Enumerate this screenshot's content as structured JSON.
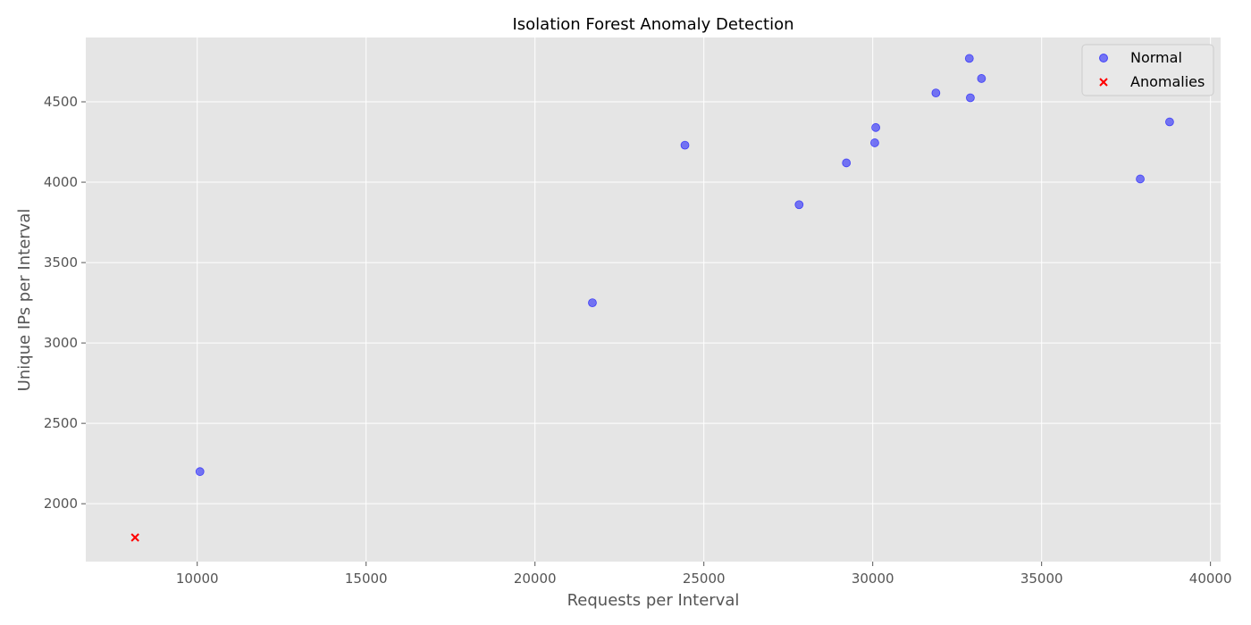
{
  "chart_data": {
    "type": "scatter",
    "title": "Isolation Forest Anomaly Detection",
    "xlabel": "Requests per Interval",
    "ylabel": "Unique IPs per Interval",
    "xlim": [
      6700,
      40300
    ],
    "ylim": [
      1640,
      4900
    ],
    "xticks": [
      10000,
      15000,
      20000,
      25000,
      30000,
      35000,
      40000
    ],
    "yticks": [
      2000,
      2500,
      3000,
      3500,
      4000,
      4500
    ],
    "grid": true,
    "legend_position": "top-right",
    "series": [
      {
        "name": "Normal",
        "marker": "circle",
        "color": "#0000ff",
        "points": [
          {
            "x": 10080,
            "y": 2200
          },
          {
            "x": 21700,
            "y": 3250
          },
          {
            "x": 24440,
            "y": 4230
          },
          {
            "x": 27820,
            "y": 3860
          },
          {
            "x": 29220,
            "y": 4120
          },
          {
            "x": 30060,
            "y": 4245
          },
          {
            "x": 30090,
            "y": 4340
          },
          {
            "x": 31870,
            "y": 4555
          },
          {
            "x": 32860,
            "y": 4770
          },
          {
            "x": 32890,
            "y": 4525
          },
          {
            "x": 33220,
            "y": 4645
          },
          {
            "x": 37920,
            "y": 4020
          },
          {
            "x": 38790,
            "y": 4375
          }
        ]
      },
      {
        "name": "Anomalies",
        "marker": "x",
        "color": "#ff0000",
        "points": [
          {
            "x": 8160,
            "y": 1790
          }
        ]
      }
    ]
  }
}
